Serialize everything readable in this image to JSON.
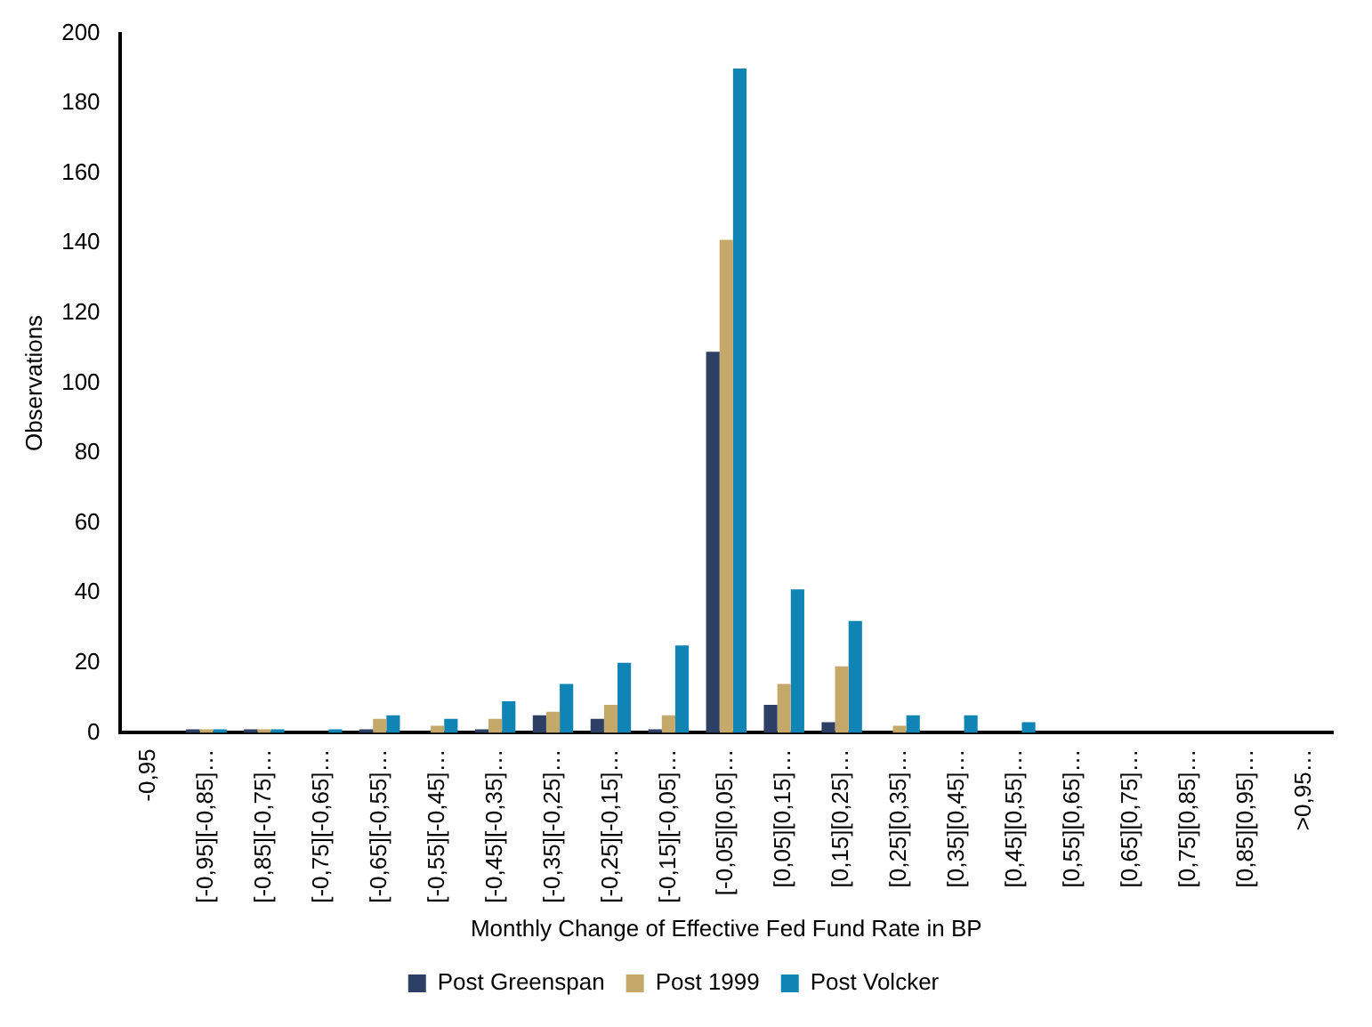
{
  "chart_data": {
    "type": "bar",
    "xlabel": "Monthly Change of Effective Fed Fund Rate in BP",
    "ylabel": "Observations",
    "categories": [
      "-0,95",
      "[-0,95][-0,85]…",
      "[-0,85][-0,75]…",
      "[-0,75][-0,65]…",
      "[-0,65][-0,55]…",
      "[-0,55][-0,45]…",
      "[-0,45][-0,35]…",
      "[-0,35][-0,25]…",
      "[-0,25][-0,15]…",
      "[-0,15][-0,05]…",
      "[-0,05][0,05]…",
      "[0,05][0,15]…",
      "[0,15][0,25]…",
      "[0,25][0,35]…",
      "[0,35][0,45]…",
      "[0,45][0,55]…",
      "[0,55][0,65]…",
      "[0,65][0,75]…",
      "[0,75][0,85]…",
      "[0,85][0,95]…",
      ">0,95…"
    ],
    "series": [
      {
        "name": "Post Greenspan",
        "color": "#2e3f66",
        "values": [
          0,
          1,
          1,
          0,
          1,
          0,
          1,
          5,
          4,
          1,
          109,
          8,
          3,
          0,
          0,
          0,
          0,
          0,
          0,
          0,
          0
        ]
      },
      {
        "name": "Post 1999",
        "color": "#c4a96b",
        "values": [
          0,
          1,
          1,
          0,
          4,
          2,
          4,
          6,
          8,
          5,
          141,
          14,
          19,
          2,
          0,
          0,
          0,
          0,
          0,
          0,
          0
        ]
      },
      {
        "name": "Post Volcker",
        "color": "#0f84b5",
        "values": [
          0,
          1,
          1,
          1,
          5,
          4,
          9,
          14,
          20,
          25,
          190,
          41,
          32,
          5,
          5,
          3,
          0,
          0,
          0,
          0,
          0
        ]
      }
    ],
    "ylim": [
      0,
      200
    ],
    "yticks": [
      0,
      20,
      40,
      60,
      80,
      100,
      120,
      140,
      160,
      180,
      200
    ],
    "grid": false,
    "legend": "bottom"
  }
}
